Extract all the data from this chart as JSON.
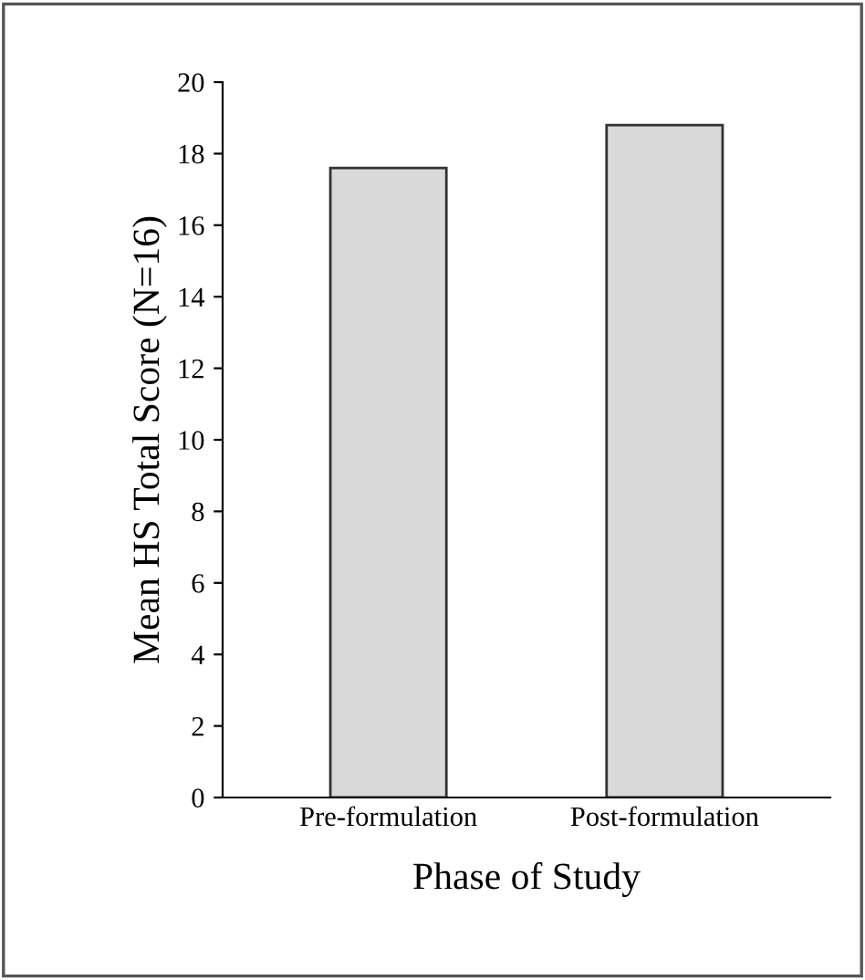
{
  "chart_data": {
    "type": "bar",
    "xlabel": "Phase of Study",
    "ylabel": "Mean HS Total Score (N=16)",
    "categories": [
      "Pre-formulation",
      "Post-formulation"
    ],
    "values": [
      17.6,
      18.8
    ],
    "color": "#d9d9d9",
    "ylim": [
      0,
      20
    ],
    "yticks": [
      0,
      2,
      4,
      6,
      8,
      10,
      12,
      14,
      16,
      18,
      20
    ],
    "grid": false
  }
}
